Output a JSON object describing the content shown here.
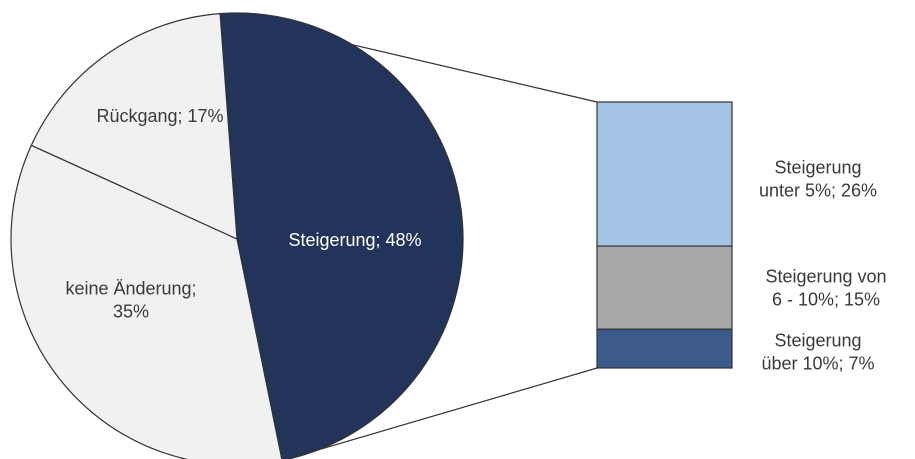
{
  "chart_data": {
    "type": "bar-of-pie",
    "pie": {
      "slices": [
        {
          "label": "Steigerung",
          "value": 48,
          "display": "Steigerung; 48%",
          "color": "#22345a",
          "text_color": "#ffffff"
        },
        {
          "label": "keine Änderung",
          "value": 35,
          "display": "keine Änderung;\n35%",
          "color": "#f0f1f1",
          "text_color": "#3a3a3a"
        },
        {
          "label": "Rückgang",
          "value": 17,
          "display": "Rückgang; 17%",
          "color": "#f0f1f1",
          "text_color": "#3a3a3a"
        }
      ],
      "exploded_slice": "Steigerung"
    },
    "bar": {
      "segments": [
        {
          "label": "Steigerung unter 5%",
          "value": 26,
          "display": "Steigerung\nunter 5%; 26%",
          "color": "#a4c4e6"
        },
        {
          "label": "Steigerung von 6 - 10%",
          "value": 15,
          "display": "Steigerung von\n6 - 10%; 15%",
          "color": "#a9a9a9"
        },
        {
          "label": "Steigerung über 10%",
          "value": 7,
          "display": "Steigerung\nüber 10%; 7%",
          "color": "#3d5b8a"
        }
      ]
    },
    "edge_color": "#333333",
    "label_color": "#3a3a3a"
  }
}
